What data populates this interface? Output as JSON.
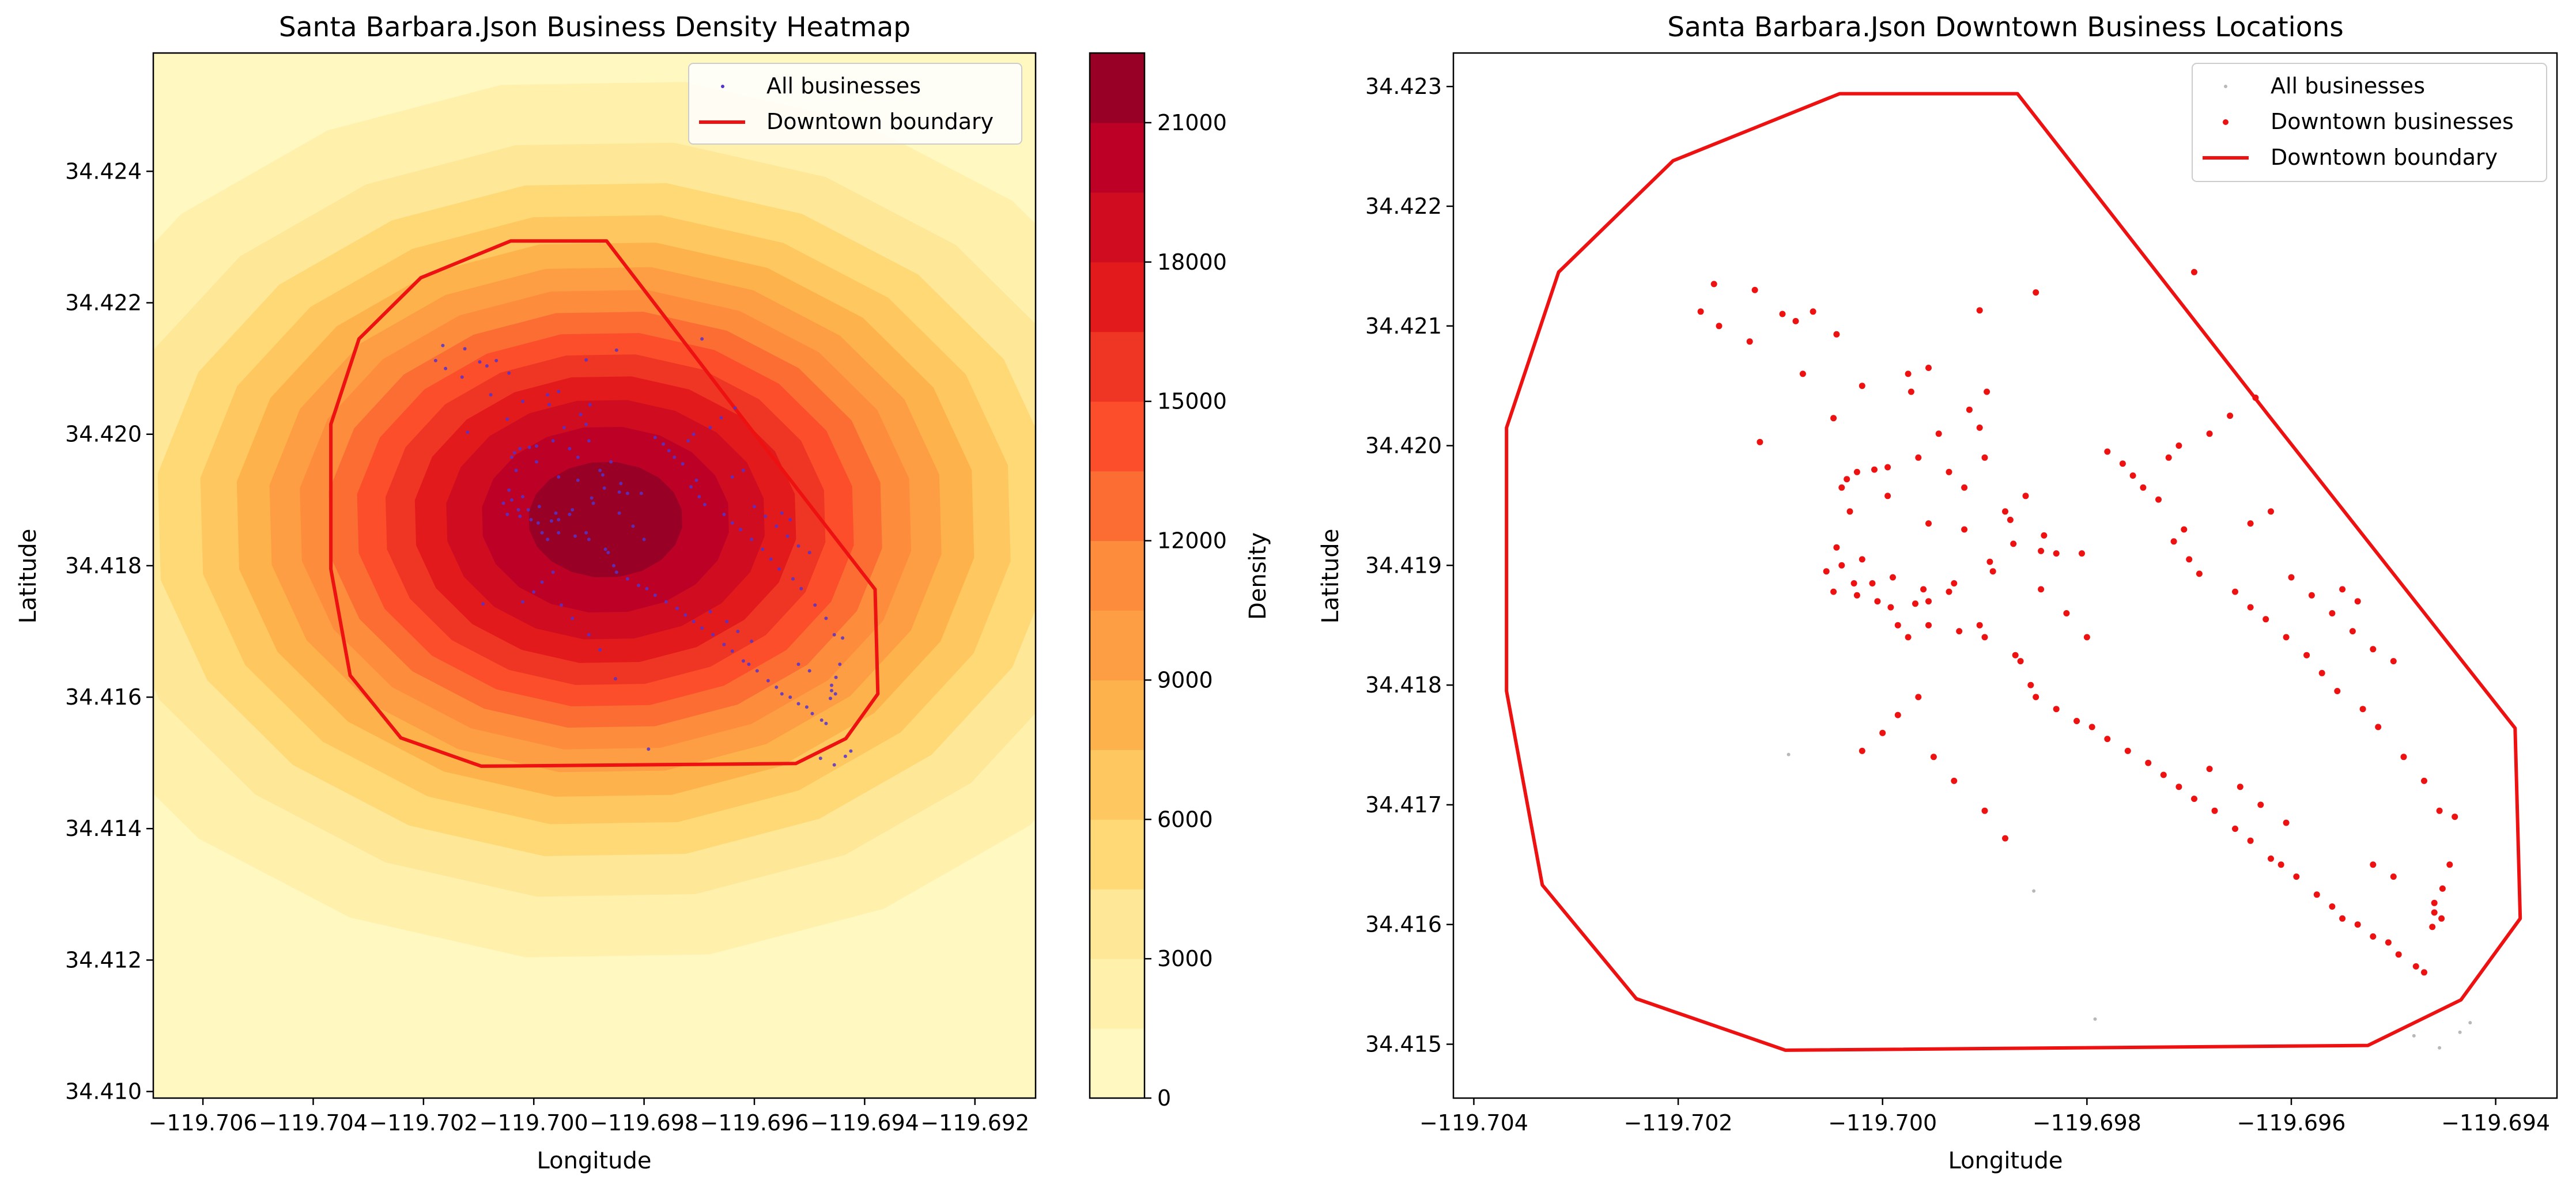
{
  "chart_data": [
    {
      "type": "heatmap",
      "title": "Santa Barbara.Json Business Density Heatmap",
      "xlabel": "Longitude",
      "ylabel": "Latitude",
      "xlim": [
        -119.7069,
        -119.6909
      ],
      "ylim": [
        34.4099,
        34.4258
      ],
      "xticks": [
        -119.706,
        -119.704,
        -119.702,
        -119.7,
        -119.698,
        -119.696,
        -119.694,
        -119.692
      ],
      "xtick_labels": [
        "−119.706",
        "−119.704",
        "−119.702",
        "−119.700",
        "−119.698",
        "−119.696",
        "−119.694",
        "−119.692"
      ],
      "yticks": [
        34.41,
        34.412,
        34.414,
        34.416,
        34.418,
        34.42,
        34.422,
        34.424
      ],
      "ytick_labels": [
        "34.410",
        "34.412",
        "34.414",
        "34.416",
        "34.418",
        "34.420",
        "34.422",
        "34.424"
      ],
      "density_peak": {
        "lon": -119.6987,
        "lat": 34.4187,
        "value": 22000
      },
      "density_spread": {
        "lon": 0.0046,
        "lat": 0.0029
      },
      "colorbar": {
        "label": "Density",
        "ticks": [
          0,
          3000,
          6000,
          9000,
          12000,
          15000,
          18000,
          21000
        ],
        "tick_labels": [
          "0",
          "3000",
          "6000",
          "9000",
          "12000",
          "15000",
          "18000",
          "21000"
        ],
        "levels": [
          0,
          1500,
          3000,
          4500,
          6000,
          7500,
          9000,
          10500,
          12000,
          13500,
          15000,
          16500,
          18000,
          19500,
          21000,
          22500
        ],
        "colors": [
          "#fff8c1",
          "#fff0ac",
          "#fee797",
          "#fed976",
          "#fec75f",
          "#feb24c",
          "#fd9d44",
          "#fd8d3c",
          "#fc6d33",
          "#fc4e2a",
          "#ef3523",
          "#e31a1c",
          "#d00c21",
          "#bd0026",
          "#980026"
        ]
      },
      "legend": {
        "position": "upper right",
        "entries": [
          "All businesses",
          "Downtown boundary"
        ]
      },
      "series": [
        {
          "name": "All businesses",
          "color": "#5533cc",
          "marker": "dot"
        },
        {
          "name": "Downtown boundary",
          "color": "#ee1111",
          "marker": "line"
        }
      ]
    },
    {
      "type": "scatter",
      "title": "Santa Barbara.Json Downtown Business Locations",
      "xlabel": "Longitude",
      "ylabel": "Latitude",
      "xlim": [
        -119.7042,
        -119.6934
      ],
      "ylim": [
        34.41455,
        34.42328
      ],
      "xticks": [
        -119.704,
        -119.702,
        -119.7,
        -119.698,
        -119.696,
        -119.694
      ],
      "xtick_labels": [
        "−119.704",
        "−119.702",
        "−119.700",
        "−119.698",
        "−119.696",
        "−119.694"
      ],
      "yticks": [
        34.415,
        34.416,
        34.417,
        34.418,
        34.419,
        34.42,
        34.421,
        34.422,
        34.423
      ],
      "ytick_labels": [
        "34.415",
        "34.416",
        "34.417",
        "34.418",
        "34.419",
        "34.420",
        "34.421",
        "34.422",
        "34.423"
      ],
      "legend": {
        "position": "upper right",
        "entries": [
          "All businesses",
          "Downtown businesses",
          "Downtown boundary"
        ]
      },
      "series": [
        {
          "name": "All businesses",
          "color": "#b8b8b8",
          "marker": "dot"
        },
        {
          "name": "Downtown businesses",
          "color": "#ee1111",
          "marker": "dot"
        },
        {
          "name": "Downtown boundary",
          "color": "#ee1111",
          "marker": "line"
        }
      ]
    }
  ],
  "boundary": [
    [
      -119.70042,
      34.42294
    ],
    [
      -119.69868,
      34.42294
    ],
    [
      -119.69622,
      34.42025
    ],
    [
      -119.69381,
      34.41764
    ],
    [
      -119.69376,
      34.41605
    ],
    [
      -119.69434,
      34.41537
    ],
    [
      -119.69525,
      34.41499
    ],
    [
      -119.70095,
      34.41495
    ],
    [
      -119.70241,
      34.41538
    ],
    [
      -119.70333,
      34.41633
    ],
    [
      -119.70368,
      34.41795
    ],
    [
      -119.70368,
      34.42015
    ],
    [
      -119.70317,
      34.42145
    ],
    [
      -119.70205,
      34.42238
    ],
    [
      -119.70042,
      34.42294
    ]
  ],
  "businesses": [
    [
      -119.70165,
      34.42135
    ],
    [
      -119.70125,
      34.4213
    ],
    [
      -119.70178,
      34.42112
    ],
    [
      -119.7016,
      34.421
    ],
    [
      -119.7013,
      34.42087
    ],
    [
      -119.70098,
      34.4211
    ],
    [
      -119.70085,
      34.42104
    ],
    [
      -119.70068,
      34.42112
    ],
    [
      -119.70078,
      34.4206
    ],
    [
      -119.70045,
      34.42093
    ],
    [
      -119.7002,
      34.4205
    ],
    [
      -119.69905,
      34.42113
    ],
    [
      -119.6985,
      34.42128
    ],
    [
      -119.69695,
      34.42145
    ],
    [
      -119.7012,
      34.42003
    ],
    [
      -119.70048,
      34.42023
    ],
    [
      -119.69975,
      34.4206
    ],
    [
      -119.69955,
      34.42065
    ],
    [
      -119.69972,
      34.42045
    ],
    [
      -119.69898,
      34.42045
    ],
    [
      -119.69915,
      34.4203
    ],
    [
      -119.69905,
      34.42015
    ],
    [
      -119.69945,
      34.4201
    ],
    [
      -119.699,
      34.4199
    ],
    [
      -119.6986,
      34.41958
    ],
    [
      -119.6988,
      34.41945
    ],
    [
      -119.6992,
      34.41965
    ],
    [
      -119.69935,
      34.41978
    ],
    [
      -119.69965,
      34.4199
    ],
    [
      -119.69995,
      34.41982
    ],
    [
      -119.70008,
      34.4198
    ],
    [
      -119.70025,
      34.41978
    ],
    [
      -119.70035,
      34.41972
    ],
    [
      -119.7004,
      34.41965
    ],
    [
      -119.70032,
      34.41945
    ],
    [
      -119.69995,
      34.41958
    ],
    [
      -119.69955,
      34.41935
    ],
    [
      -119.6992,
      34.4193
    ],
    [
      -119.69875,
      34.41938
    ],
    [
      -119.69872,
      34.41918
    ],
    [
      -119.69845,
      34.41912
    ],
    [
      -119.69842,
      34.41925
    ],
    [
      -119.6983,
      34.4191
    ],
    [
      -119.69805,
      34.4191
    ],
    [
      -119.69895,
      34.41903
    ],
    [
      -119.69892,
      34.41895
    ],
    [
      -119.6993,
      34.41885
    ],
    [
      -119.69935,
      34.41878
    ],
    [
      -119.6996,
      34.4188
    ],
    [
      -119.69955,
      34.4187
    ],
    [
      -119.69968,
      34.41868
    ],
    [
      -119.69992,
      34.41865
    ],
    [
      -119.7002,
      34.41905
    ],
    [
      -119.70045,
      34.41915
    ],
    [
      -119.7004,
      34.419
    ],
    [
      -119.70055,
      34.41895
    ],
    [
      -119.70028,
      34.41885
    ],
    [
      -119.70048,
      34.41878
    ],
    [
      -119.70025,
      34.41875
    ],
    [
      -119.70005,
      34.4187
    ],
    [
      -119.7001,
      34.41885
    ],
    [
      -119.6999,
      34.4189
    ],
    [
      -119.69985,
      34.4185
    ],
    [
      -119.69975,
      34.4184
    ],
    [
      -119.69955,
      34.4185
    ],
    [
      -119.69925,
      34.41845
    ],
    [
      -119.69905,
      34.4185
    ],
    [
      -119.699,
      34.4184
    ],
    [
      -119.6987,
      34.41825
    ],
    [
      -119.69865,
      34.4182
    ],
    [
      -119.69855,
      34.418
    ],
    [
      -119.6985,
      34.4179
    ],
    [
      -119.6983,
      34.4178
    ],
    [
      -119.6981,
      34.4177
    ],
    [
      -119.69795,
      34.41765
    ],
    [
      -119.6978,
      34.41755
    ],
    [
      -119.6976,
      34.41745
    ],
    [
      -119.6974,
      34.41735
    ],
    [
      -119.69725,
      34.41725
    ],
    [
      -119.6971,
      34.41715
    ],
    [
      -119.69695,
      34.41705
    ],
    [
      -119.69675,
      34.41695
    ],
    [
      -119.69655,
      34.4168
    ],
    [
      -119.6964,
      34.4167
    ],
    [
      -119.6962,
      34.41655
    ],
    [
      -119.6961,
      34.4165
    ],
    [
      -119.69595,
      34.4164
    ],
    [
      -119.69575,
      34.41625
    ],
    [
      -119.6956,
      34.41615
    ],
    [
      -119.6955,
      34.41605
    ],
    [
      -119.69535,
      34.416
    ],
    [
      -119.6952,
      34.4159
    ],
    [
      -119.69505,
      34.41585
    ],
    [
      -119.69495,
      34.41575
    ],
    [
      -119.69478,
      34.41565
    ],
    [
      -119.6947,
      34.4156
    ],
    [
      -119.6946,
      34.4161
    ],
    [
      -119.69462,
      34.41598
    ],
    [
      -119.69453,
      34.41605
    ],
    [
      -119.6946,
      34.41618
    ],
    [
      -119.69452,
      34.4163
    ],
    [
      -119.69445,
      34.4165
    ],
    [
      -119.6944,
      34.4169
    ],
    [
      -119.69455,
      34.41695
    ],
    [
      -119.6947,
      34.4172
    ],
    [
      -119.6949,
      34.4174
    ],
    [
      -119.69515,
      34.41765
    ],
    [
      -119.6953,
      34.4178
    ],
    [
      -119.69555,
      34.41795
    ],
    [
      -119.6957,
      34.4181
    ],
    [
      -119.69585,
      34.41825
    ],
    [
      -119.69605,
      34.4184
    ],
    [
      -119.69625,
      34.41855
    ],
    [
      -119.6964,
      34.41865
    ],
    [
      -119.69655,
      34.41878
    ],
    [
      -119.6969,
      34.41893
    ],
    [
      -119.697,
      34.41905
    ],
    [
      -119.69715,
      34.4192
    ],
    [
      -119.69705,
      34.4193
    ],
    [
      -119.6973,
      34.41955
    ],
    [
      -119.69745,
      34.41965
    ],
    [
      -119.69755,
      34.41975
    ],
    [
      -119.69765,
      34.41985
    ],
    [
      -119.6978,
      34.41995
    ],
    [
      -119.6964,
      34.41935
    ],
    [
      -119.6962,
      34.41945
    ],
    [
      -119.696,
      34.4189
    ],
    [
      -119.6958,
      34.41875
    ],
    [
      -119.6956,
      34.4186
    ],
    [
      -119.6954,
      34.41845
    ],
    [
      -119.6952,
      34.4183
    ],
    [
      -119.695,
      34.4182
    ],
    [
      -119.69845,
      34.4188
    ],
    [
      -119.6982,
      34.4186
    ],
    [
      -119.698,
      34.4184
    ],
    [
      -119.6972,
      34.4199
    ],
    [
      -119.6971,
      34.42
    ],
    [
      -119.6968,
      34.4201
    ],
    [
      -119.6966,
      34.42025
    ],
    [
      -119.69635,
      34.4204
    ],
    [
      -119.6995,
      34.4174
    ],
    [
      -119.6993,
      34.4172
    ],
    [
      -119.699,
      34.41695
    ],
    [
      -119.6988,
      34.41672
    ],
    [
      -119.6968,
      34.4173
    ],
    [
      -119.6965,
      34.41715
    ],
    [
      -119.6963,
      34.417
    ],
    [
      -119.69605,
      34.41685
    ],
    [
      -119.7002,
      34.41745
    ],
    [
      -119.7,
      34.4176
    ],
    [
      -119.69985,
      34.41775
    ],
    [
      -119.69965,
      34.4179
    ],
    [
      -119.6955,
      34.4188
    ],
    [
      -119.69535,
      34.4187
    ],
    [
      -119.6952,
      34.4165
    ],
    [
      -119.695,
      34.4164
    ]
  ],
  "outside_businesses": [
    [
      -119.69435,
      34.4151
    ],
    [
      -119.69455,
      34.41497
    ],
    [
      -119.6948,
      34.41507
    ],
    [
      -119.69425,
      34.41518
    ],
    [
      -119.69792,
      34.41521
    ],
    [
      -119.70092,
      34.41742
    ],
    [
      -119.69852,
      34.41628
    ]
  ]
}
